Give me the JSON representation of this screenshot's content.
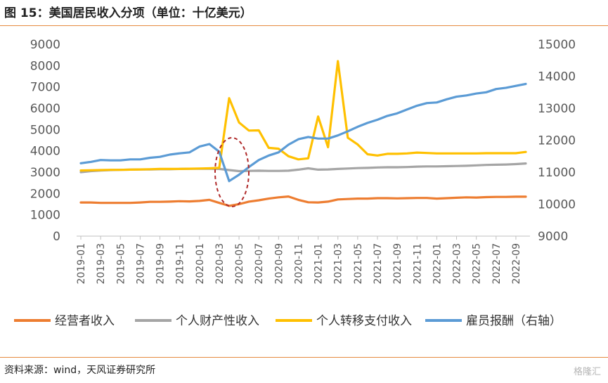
{
  "header": {
    "title": "图 15：美国居民收入分项（单位：十亿美元）"
  },
  "footer": {
    "source": "资料来源：wind，天风证券研究所",
    "watermark": "格隆汇"
  },
  "chart_data": {
    "type": "line",
    "title": "图 15：美国居民收入分项（单位：十亿美元）",
    "x": [
      "2019-01",
      "2019-02",
      "2019-03",
      "2019-04",
      "2019-05",
      "2019-06",
      "2019-07",
      "2019-08",
      "2019-09",
      "2019-10",
      "2019-11",
      "2019-12",
      "2020-01",
      "2020-02",
      "2020-03",
      "2020-04",
      "2020-05",
      "2020-06",
      "2020-07",
      "2020-08",
      "2020-09",
      "2020-10",
      "2020-11",
      "2020-12",
      "2021-01",
      "2021-02",
      "2021-03",
      "2021-04",
      "2021-05",
      "2021-06",
      "2021-07",
      "2021-08",
      "2021-09",
      "2021-10",
      "2021-11",
      "2021-12",
      "2022-01",
      "2022-02",
      "2022-03",
      "2022-04",
      "2022-05",
      "2022-06",
      "2022-07",
      "2022-08",
      "2022-09",
      "2022-10"
    ],
    "x_tick_labels": [
      "2019-01",
      "2019-03",
      "2019-05",
      "2019-07",
      "2019-09",
      "2019-11",
      "2020-01",
      "2020-03",
      "2020-05",
      "2020-07",
      "2020-09",
      "2020-11",
      "2021-01",
      "2021-03",
      "2021-05",
      "2021-07",
      "2021-09",
      "2021-11",
      "2022-01",
      "2022-03",
      "2022-05",
      "2022-07",
      "2022-09"
    ],
    "y_left_lim": [
      0,
      9000
    ],
    "y_left_ticks": [
      0,
      1000,
      2000,
      3000,
      4000,
      5000,
      6000,
      7000,
      8000,
      9000
    ],
    "y_right_lim": [
      9000,
      15000
    ],
    "y_right_ticks": [
      9000,
      10000,
      11000,
      12000,
      13000,
      14000,
      15000
    ],
    "grid": false,
    "legend_position": "bottom",
    "series": [
      {
        "name": "经营者收入",
        "axis": "left",
        "color": "#ed7d31",
        "values": [
          1580,
          1580,
          1560,
          1560,
          1560,
          1560,
          1580,
          1610,
          1610,
          1620,
          1640,
          1630,
          1650,
          1700,
          1560,
          1420,
          1500,
          1620,
          1680,
          1760,
          1820,
          1860,
          1700,
          1590,
          1580,
          1620,
          1720,
          1740,
          1760,
          1760,
          1780,
          1780,
          1770,
          1780,
          1790,
          1790,
          1760,
          1780,
          1800,
          1820,
          1810,
          1830,
          1840,
          1840,
          1850,
          1850
        ]
      },
      {
        "name": "个人财产性收入",
        "axis": "left",
        "color": "#a5a5a5",
        "values": [
          3000,
          3050,
          3080,
          3100,
          3110,
          3120,
          3130,
          3130,
          3140,
          3140,
          3150,
          3160,
          3160,
          3160,
          3150,
          3100,
          3050,
          3060,
          3070,
          3060,
          3060,
          3070,
          3120,
          3180,
          3120,
          3130,
          3150,
          3170,
          3190,
          3200,
          3220,
          3230,
          3230,
          3240,
          3260,
          3270,
          3270,
          3280,
          3290,
          3300,
          3320,
          3340,
          3350,
          3360,
          3380,
          3410
        ]
      },
      {
        "name": "个人转移支付收入",
        "axis": "left",
        "color": "#ffc000",
        "values": [
          3080,
          3090,
          3100,
          3110,
          3110,
          3120,
          3130,
          3140,
          3150,
          3150,
          3150,
          3160,
          3170,
          3180,
          3200,
          6470,
          5330,
          4950,
          4960,
          4140,
          4100,
          3750,
          3600,
          3650,
          5610,
          4170,
          8210,
          4620,
          4300,
          3840,
          3780,
          3860,
          3860,
          3880,
          3920,
          3900,
          3880,
          3880,
          3880,
          3880,
          3880,
          3890,
          3890,
          3890,
          3890,
          3950
        ]
      },
      {
        "name": "雇员报酬（右轴）",
        "axis": "right",
        "color": "#5b9bd5",
        "values": [
          11280,
          11320,
          11380,
          11370,
          11370,
          11400,
          11400,
          11450,
          11480,
          11550,
          11590,
          11620,
          11800,
          11880,
          11640,
          10720,
          10920,
          11160,
          11380,
          11520,
          11620,
          11860,
          12030,
          12100,
          12050,
          12050,
          12150,
          12280,
          12420,
          12540,
          12640,
          12760,
          12840,
          12960,
          13080,
          13160,
          13180,
          13280,
          13360,
          13400,
          13460,
          13500,
          13600,
          13640,
          13700,
          13760
        ]
      }
    ]
  }
}
